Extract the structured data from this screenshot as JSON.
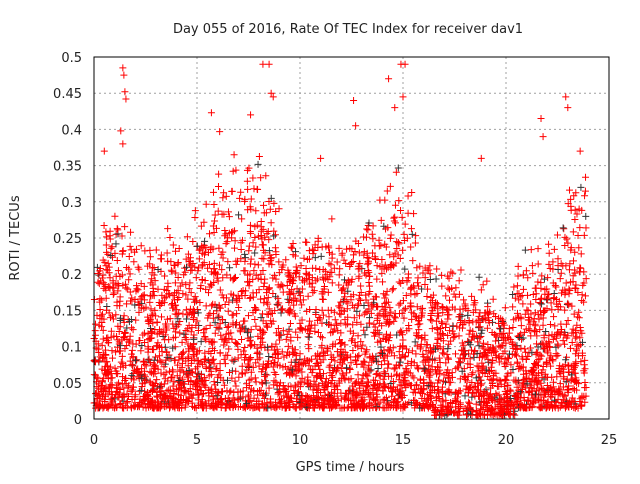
{
  "chart_data": {
    "type": "scatter",
    "title": "Day 055 of 2016, Rate Of TEC Index for receiver dav1",
    "xlabel": "GPS time / hours",
    "ylabel": "ROTI / TECUs",
    "xlim": [
      0,
      25
    ],
    "ylim": [
      0,
      0.5
    ],
    "xticks": [
      "0",
      "5",
      "10",
      "15",
      "20",
      "25"
    ],
    "yticks": [
      "0",
      "0.05",
      "0.1",
      "0.15",
      "0.2",
      "0.25",
      "0.3",
      "0.35",
      "0.4",
      "0.45",
      "0.5"
    ],
    "grid": true,
    "marker": "+",
    "series": [
      {
        "name": "ROTI (red)",
        "color": "#ff0000"
      },
      {
        "name": "ROTI (black)",
        "color": "#333333"
      }
    ],
    "data_range_hours": [
      0,
      23.9
    ],
    "typical_upper_envelope": {
      "hours": [
        0,
        1,
        2,
        3,
        4,
        5,
        6,
        7,
        8,
        9,
        10,
        11,
        12,
        13,
        14,
        15,
        16,
        17,
        18,
        19,
        20,
        21,
        22,
        23,
        23.9
      ],
      "roti": [
        0.2,
        0.25,
        0.2,
        0.2,
        0.22,
        0.25,
        0.28,
        0.3,
        0.3,
        0.25,
        0.22,
        0.22,
        0.22,
        0.22,
        0.27,
        0.3,
        0.2,
        0.18,
        0.18,
        0.17,
        0.14,
        0.2,
        0.2,
        0.27,
        0.3
      ]
    },
    "peaks": [
      [
        1.4,
        0.485
      ],
      [
        1.45,
        0.475
      ],
      [
        1.5,
        0.452
      ],
      [
        1.55,
        0.442
      ],
      [
        1.3,
        0.398
      ],
      [
        1.4,
        0.38
      ],
      [
        0.5,
        0.37
      ],
      [
        5.7,
        0.423
      ],
      [
        6.1,
        0.397
      ],
      [
        6.8,
        0.365
      ],
      [
        7.6,
        0.42
      ],
      [
        8.2,
        0.49
      ],
      [
        8.5,
        0.49
      ],
      [
        8.6,
        0.45
      ],
      [
        8.7,
        0.445
      ],
      [
        11.0,
        0.36
      ],
      [
        12.6,
        0.44
      ],
      [
        12.7,
        0.405
      ],
      [
        14.3,
        0.47
      ],
      [
        14.6,
        0.43
      ],
      [
        14.9,
        0.49
      ],
      [
        15.1,
        0.49
      ],
      [
        15.0,
        0.445
      ],
      [
        18.8,
        0.36
      ],
      [
        21.7,
        0.415
      ],
      [
        21.8,
        0.39
      ],
      [
        22.9,
        0.445
      ],
      [
        23.0,
        0.43
      ],
      [
        23.6,
        0.37
      ]
    ]
  }
}
